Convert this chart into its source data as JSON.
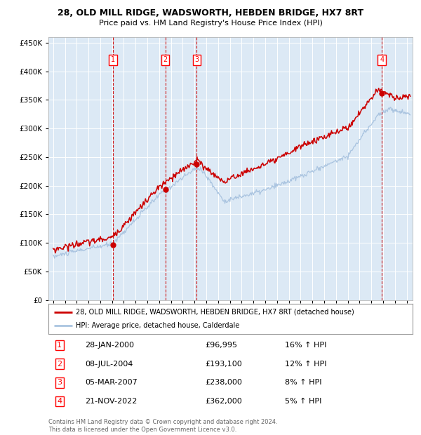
{
  "title": "28, OLD MILL RIDGE, WADSWORTH, HEBDEN BRIDGE, HX7 8RT",
  "subtitle": "Price paid vs. HM Land Registry's House Price Index (HPI)",
  "plot_bg_color": "#dce9f5",
  "hpi_color": "#aac4e0",
  "price_color": "#cc0000",
  "ylim": [
    0,
    460000
  ],
  "yticks": [
    0,
    50000,
    100000,
    150000,
    200000,
    250000,
    300000,
    350000,
    400000,
    450000
  ],
  "legend_items": [
    "28, OLD MILL RIDGE, WADSWORTH, HEBDEN BRIDGE, HX7 8RT (detached house)",
    "HPI: Average price, detached house, Calderdale"
  ],
  "transactions": [
    {
      "num": 1,
      "date": "28-JAN-2000",
      "price": 96995,
      "pct": "16%",
      "direction": "↑",
      "x_year": 2000.07
    },
    {
      "num": 2,
      "date": "08-JUL-2004",
      "price": 193100,
      "pct": "12%",
      "direction": "↑",
      "x_year": 2004.52
    },
    {
      "num": 3,
      "date": "05-MAR-2007",
      "price": 238000,
      "pct": "8%",
      "direction": "↑",
      "x_year": 2007.18
    },
    {
      "num": 4,
      "date": "21-NOV-2022",
      "price": 362000,
      "pct": "5%",
      "direction": "↑",
      "x_year": 2022.89
    }
  ],
  "footer_line1": "Contains HM Land Registry data © Crown copyright and database right 2024.",
  "footer_line2": "This data is licensed under the Open Government Licence v3.0.",
  "x_start": 1994.6,
  "x_end": 2025.5,
  "x_tick_start": 1995,
  "x_tick_end": 2025
}
